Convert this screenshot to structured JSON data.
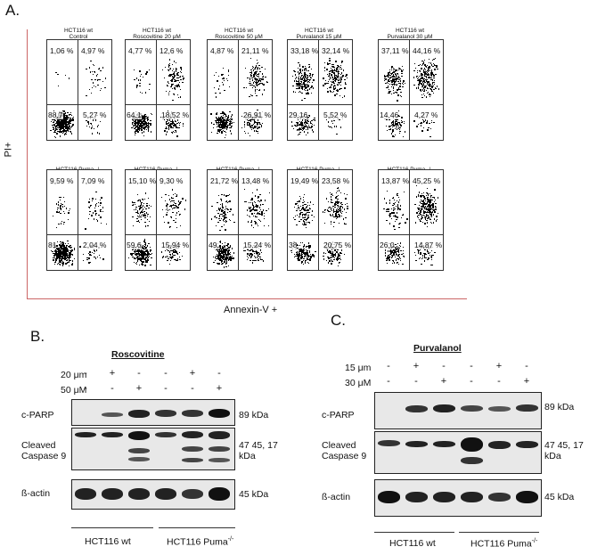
{
  "panel_a": {
    "label": "A.",
    "y_axis": "PI+",
    "x_axis": "Annexin-V +",
    "rows": [
      {
        "plots": [
          {
            "title1": "HCT116 wt",
            "title2": "Control",
            "ul": "1,06 %",
            "ur": "4,97 %",
            "ll": "88,7",
            "lr": "5,27 %"
          },
          {
            "title1": "HCT116 wt",
            "title2": "Roscovitine 20 μM",
            "ul": "4,77 %",
            "ur": "12,6 %",
            "ll": "64,1",
            "lr": "18,52 %"
          },
          {
            "title1": "HCT116 wt",
            "title2": "Roscovitine 50 μM",
            "ul": "4,87 %",
            "ur": "21,11 %",
            "ll": "",
            "lr": "26,91 %"
          },
          {
            "title1": "HCT116 wt",
            "title2": "Purvalanol 15 μM",
            "ul": "33,18 %",
            "ur": "32,14 %",
            "ll": "29,16",
            "lr": "5,52 %"
          },
          {
            "title1": "HCT116 wt",
            "title2": "Purvalanol 30 μM",
            "ul": "37,11 %",
            "ur": "44,16 %",
            "ll": "14,46",
            "lr": "4,27 %"
          }
        ]
      },
      {
        "plots": [
          {
            "title1": "HCT116 Puma -/-",
            "title2": "Control",
            "ul": "9,59 %",
            "ur": "7,09 %",
            "ll": "81",
            "lr": "2,04 %"
          },
          {
            "title1": "HCT116 Puma -/-",
            "title2": "Roscovitine 20 μM",
            "ul": "15,10 %",
            "ur": "9,30 %",
            "ll": "59,6",
            "lr": "15,94 %"
          },
          {
            "title1": "HCT116 Puma -/-",
            "title2": "Roscovitine 50 μM",
            "ul": "21,72 %",
            "ur": "13,48 %",
            "ll": "49,",
            "lr": "15,24 %"
          },
          {
            "title1": "HCT116 Puma -/-",
            "title2": "Purvalanol 15 μM",
            "ul": "19,49 %",
            "ur": "23,58 %",
            "ll": "38",
            "lr": "20,75 %"
          },
          {
            "title1": "HCT116 Puma -/-",
            "title2": "Purvalanol 30 μM",
            "ul": "13,87 %",
            "ur": "45,25 %",
            "ll": "26,0",
            "lr": "14,87 %"
          }
        ]
      }
    ]
  },
  "panel_b": {
    "label": "B.",
    "treatment": "Roscovitine",
    "dose1": "20 μm",
    "dose2": "50 μM",
    "dose1_signs": [
      "-",
      "+",
      "-",
      "-",
      "+",
      "-"
    ],
    "dose2_signs": [
      "-",
      "-",
      "+",
      "-",
      "-",
      "+"
    ],
    "rows": [
      {
        "label": "c-PARP",
        "kda": "89 kDa"
      },
      {
        "label": "Cleaved\nCaspase 9",
        "kda": "47 45, 17\nkDa"
      },
      {
        "label": "ß-actin",
        "kda": "45 kDa"
      }
    ],
    "group1": "HCT116 wt",
    "group2": "HCT116 Puma",
    "group2_sup": "-/-"
  },
  "panel_c": {
    "label": "C.",
    "treatment": "Purvalanol",
    "dose1": "15 μm",
    "dose2": "30 μM",
    "dose1_signs": [
      "-",
      "+",
      "-",
      "-",
      "+",
      "-"
    ],
    "dose2_signs": [
      "-",
      "-",
      "+",
      "-",
      "-",
      "+"
    ],
    "rows": [
      {
        "label": "c-PARP",
        "kda": "89 kDa"
      },
      {
        "label": "Cleaved\nCaspase 9",
        "kda": "47 45, 17\nkDa"
      },
      {
        "label": "ß-actin",
        "kda": "45 kDa"
      }
    ],
    "group1": "HCT116 wt",
    "group2": "HCT116 Puma",
    "group2_sup": "-/-"
  }
}
